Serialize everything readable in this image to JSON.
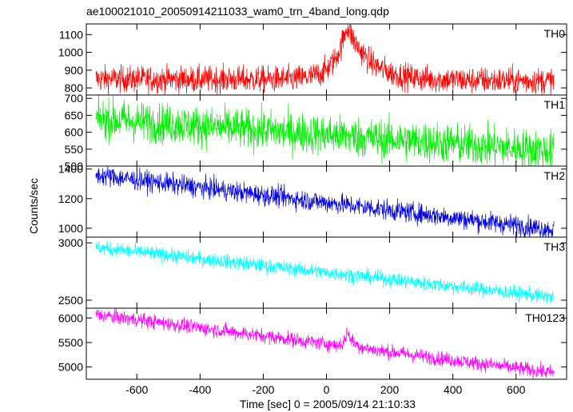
{
  "chart_data": {
    "type": "line",
    "title": "ae100021010_20050914211033_wam0_trn_4band_long.qdp",
    "xlabel": "Time [sec] 0 = 2005/09/14 21:10:33",
    "ylabel": "Counts/sec",
    "xlim": [
      -760,
      760
    ],
    "x_ticks": [
      -600,
      -400,
      -200,
      0,
      200,
      400,
      600
    ],
    "x_range": [
      -730,
      720
    ],
    "n_points": 1450,
    "grid": false,
    "panels": [
      {
        "name": "TH0",
        "color": "#ff0000",
        "ylim": [
          760,
          1160
        ],
        "y_ticks": [
          800,
          900,
          1000,
          1100
        ],
        "trend": [
          [
            -730,
            850
          ],
          [
            720,
            840
          ]
        ],
        "noise": 38,
        "features": [
          {
            "kind": "flare",
            "peak_x": 65,
            "peak_y": 1150,
            "baseline": 845,
            "rise": 40,
            "decay": 70
          }
        ]
      },
      {
        "name": "TH1",
        "color": "#00ee00",
        "ylim": [
          500,
          710
        ],
        "y_ticks": [
          500,
          550,
          600,
          650,
          700
        ],
        "trend": [
          [
            -730,
            640
          ],
          [
            720,
            545
          ]
        ],
        "noise": 30,
        "features": []
      },
      {
        "name": "TH2",
        "color": "#0000dd",
        "ylim": [
          940,
          1420
        ],
        "y_ticks": [
          1000,
          1200,
          1400
        ],
        "trend": [
          [
            -730,
            1360
          ],
          [
            720,
            990
          ]
        ],
        "noise": 35,
        "features": []
      },
      {
        "name": "TH3",
        "color": "#00ffff",
        "ylim": [
          2430,
          3050
        ],
        "y_ticks": [
          2500,
          3000
        ],
        "trend": [
          [
            -730,
            2960
          ],
          [
            720,
            2525
          ]
        ],
        "noise": 32,
        "features": []
      },
      {
        "name": "TH0123",
        "color": "#ff00ff",
        "ylim": [
          4750,
          6200
        ],
        "y_ticks": [
          5000,
          5500,
          6000
        ],
        "trend": [
          [
            -730,
            6070
          ],
          [
            720,
            4880
          ]
        ],
        "noise": 75,
        "features": [
          {
            "kind": "flare",
            "peak_x": 65,
            "peak_y": 5750,
            "baseline": 5440,
            "rise": 8,
            "decay": 20
          }
        ]
      }
    ]
  }
}
